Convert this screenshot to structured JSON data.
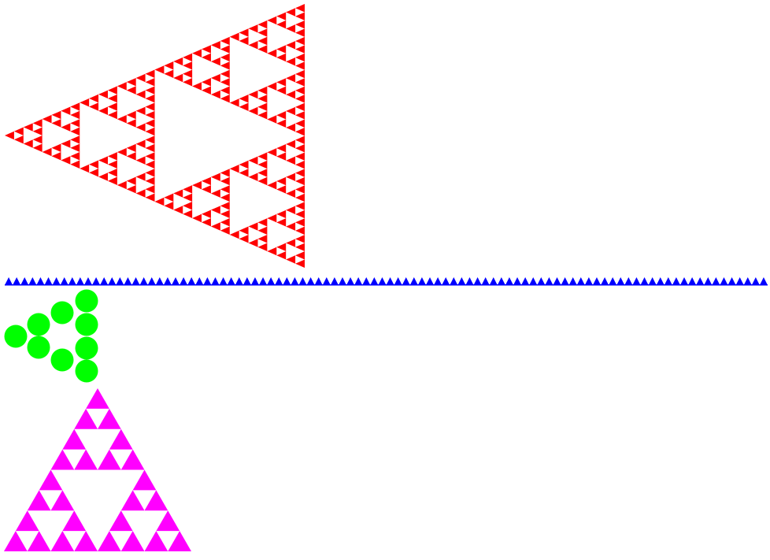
{
  "figures": {
    "red_sierpinski": {
      "color": "#ff0000",
      "orientation": "pointing-left",
      "recursion_depth": 5
    },
    "blue_triangle_row": {
      "color": "#0000ff",
      "orientation": "pointing-up"
    },
    "green_circles": {
      "color": "#00ff00",
      "count": 9
    },
    "magenta_sierpinski": {
      "color": "#ff00ff",
      "orientation": "pointing-up",
      "recursion_depth": 3
    }
  }
}
